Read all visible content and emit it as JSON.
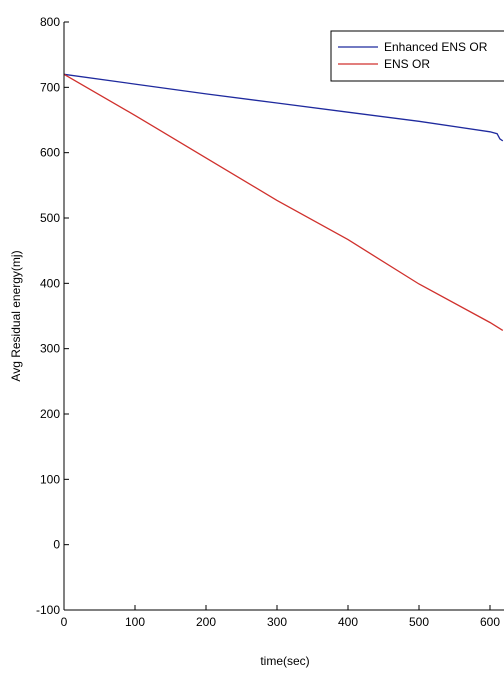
{
  "chart_data": {
    "type": "line",
    "xlabel": "time(sec)",
    "ylabel": "Avg Residual energy(mj)",
    "xlim": [
      0,
      618
    ],
    "ylim": [
      -100,
      800
    ],
    "xticks": [
      0,
      100,
      200,
      300,
      400,
      500,
      600
    ],
    "yticks": [
      -100,
      0,
      100,
      200,
      300,
      400,
      500,
      600,
      700,
      800
    ],
    "grid": false,
    "legend_position": "top-right",
    "series": [
      {
        "name": "Enhanced ENS OR",
        "color": "#1f2a9e",
        "x": [
          0,
          100,
          200,
          300,
          400,
          500,
          600,
          610,
          614,
          618
        ],
        "y": [
          720,
          705,
          690,
          676,
          662,
          648,
          632,
          629,
          621,
          618
        ]
      },
      {
        "name": "ENS OR",
        "color": "#d0312d",
        "x": [
          0,
          100,
          200,
          300,
          400,
          500,
          600,
          618
        ],
        "y": [
          720,
          657,
          592,
          527,
          467,
          399,
          340,
          328
        ]
      }
    ]
  }
}
